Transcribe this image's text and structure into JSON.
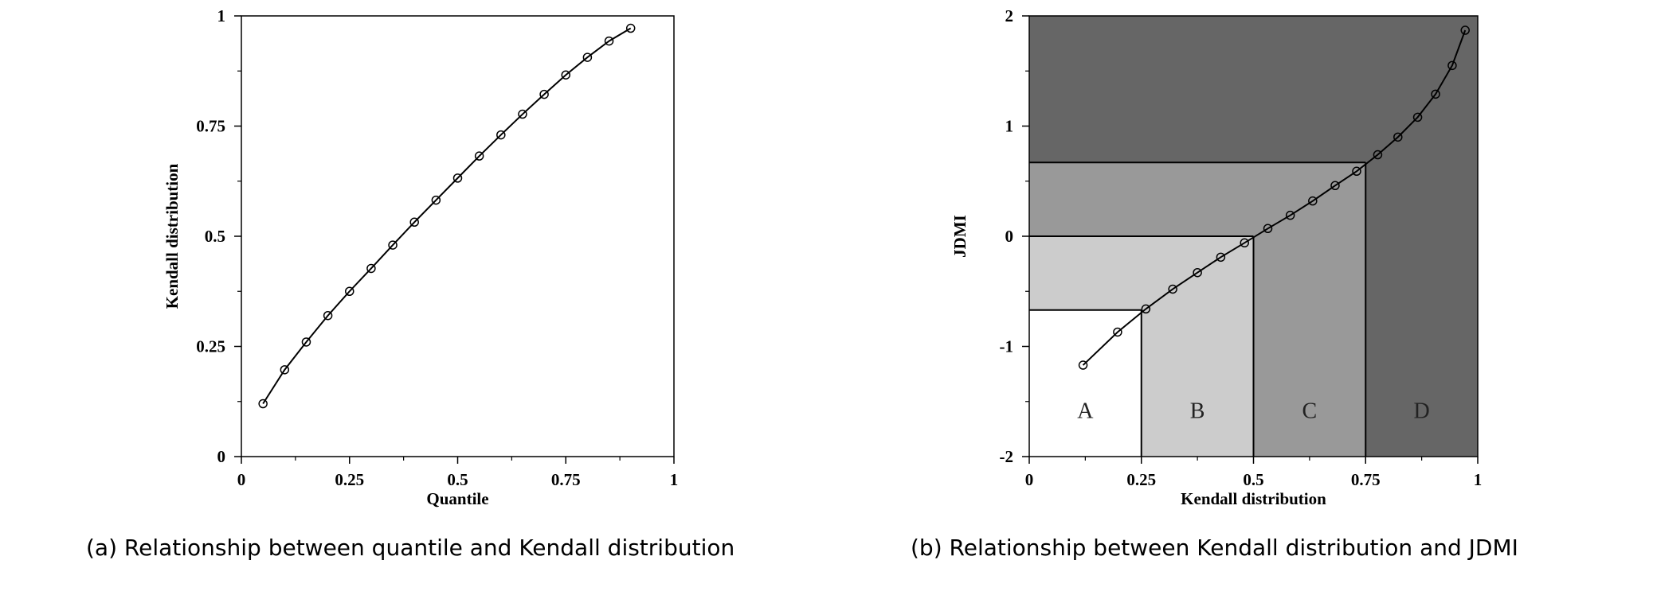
{
  "chart_data": [
    {
      "type": "line",
      "id": "a",
      "title": "",
      "xlabel": "Quantile",
      "ylabel": "Kendall distribution",
      "xlim": [
        0,
        1
      ],
      "ylim": [
        0,
        1
      ],
      "xticks": [
        0,
        0.25,
        0.5,
        0.75,
        1
      ],
      "yticks": [
        0,
        0.25,
        0.5,
        0.75,
        1
      ],
      "xtick_labels": [
        "0",
        "0.25",
        "0.5",
        "0.75",
        "1"
      ],
      "ytick_labels": [
        "0",
        "0.25",
        "0.5",
        "0.75",
        "1"
      ],
      "marker": "open-circle",
      "series": [
        {
          "name": "Kendall distribution",
          "x": [
            0.05,
            0.1,
            0.15,
            0.2,
            0.25,
            0.3,
            0.35,
            0.4,
            0.45,
            0.5,
            0.55,
            0.6,
            0.65,
            0.7,
            0.75,
            0.8,
            0.85,
            0.9
          ],
          "y": [
            0.12,
            0.197,
            0.26,
            0.32,
            0.375,
            0.427,
            0.48,
            0.532,
            0.582,
            0.632,
            0.682,
            0.73,
            0.777,
            0.822,
            0.866,
            0.906,
            0.943,
            0.972
          ]
        }
      ],
      "caption": "(a) Relationship between quantile and Kendall distribution"
    },
    {
      "type": "line",
      "id": "b",
      "title": "",
      "xlabel": "Kendall distribution",
      "ylabel": "JDMI",
      "xlim": [
        0,
        1
      ],
      "ylim": [
        -2,
        2
      ],
      "xticks": [
        0,
        0.25,
        0.5,
        0.75,
        1
      ],
      "yticks": [
        -2,
        -1,
        0,
        1,
        2
      ],
      "xtick_labels": [
        "0",
        "0.25",
        "0.5",
        "0.75",
        "1"
      ],
      "ytick_labels": [
        "-2",
        "-1",
        "0",
        "1",
        "2"
      ],
      "marker": "open-circle",
      "regions": [
        {
          "label": "A",
          "x_range": [
            0,
            0.25
          ],
          "y_top": -0.67,
          "color": "#ffffff"
        },
        {
          "label": "B",
          "x_range": [
            0.25,
            0.5
          ],
          "y_top": 0,
          "color": "#cccccc"
        },
        {
          "label": "C",
          "x_range": [
            0.5,
            0.75
          ],
          "y_top": 0.67,
          "color": "#999999"
        },
        {
          "label": "D",
          "x_range": [
            0.75,
            1
          ],
          "y_top": 2,
          "color": "#666666"
        }
      ],
      "series": [
        {
          "name": "JDMI",
          "x": [
            0.12,
            0.197,
            0.26,
            0.32,
            0.375,
            0.427,
            0.48,
            0.532,
            0.582,
            0.632,
            0.682,
            0.73,
            0.777,
            0.822,
            0.866,
            0.906,
            0.943,
            0.972
          ],
          "y": [
            -1.17,
            -0.87,
            -0.66,
            -0.48,
            -0.33,
            -0.19,
            -0.06,
            0.07,
            0.19,
            0.32,
            0.46,
            0.59,
            0.74,
            0.9,
            1.08,
            1.29,
            1.55,
            1.87
          ]
        }
      ],
      "caption": "(b) Relationship between Kendall distribution and JDMI"
    }
  ]
}
